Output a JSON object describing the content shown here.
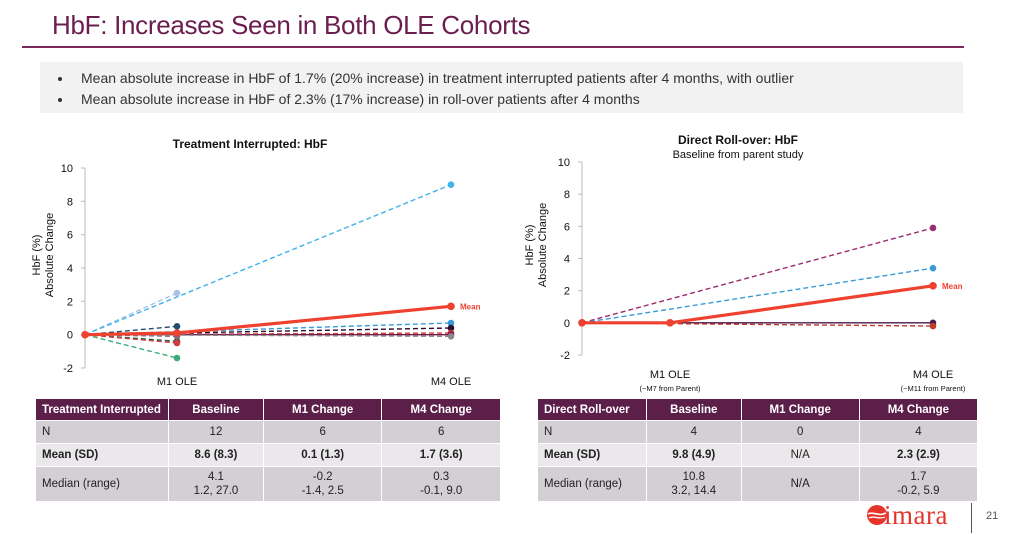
{
  "slide": {
    "title": "HbF: Increases Seen in Both OLE Cohorts",
    "bullets": [
      "Mean absolute increase in HbF of 1.7% (20% increase) in treatment interrupted patients after 4 months, with outlier",
      "Mean absolute increase in HbF of 2.3% (17% increase) in roll-over patients after 4 months"
    ],
    "logo_text": "imara",
    "page_number": "21",
    "colors": {
      "brand": "#6b1d4f",
      "table_header": "#5c1f4a",
      "mean_line": "#ef4130",
      "logo": "#e5352b"
    }
  },
  "chart_data": [
    {
      "type": "line",
      "title": "Treatment Interrupted: HbF",
      "subtitle": "",
      "ylabel": [
        "HbF (%)",
        "Absolute Change"
      ],
      "xlabel": "",
      "categories": [
        "",
        "M1 OLE",
        "M4 OLE"
      ],
      "category_sublabels": [
        "",
        "",
        ""
      ],
      "ylim": [
        -2,
        10
      ],
      "yticks": [
        "-2",
        "0",
        "2",
        "4",
        "6",
        "8",
        "10"
      ],
      "grid": false,
      "series": [
        {
          "color": "#a9c4e8",
          "dashed": true,
          "values": [
            0,
            2.5,
            null
          ]
        },
        {
          "color": "#1f4e6e",
          "dashed": true,
          "values": [
            0,
            0.5,
            null
          ]
        },
        {
          "color": "#1e5a3a",
          "dashed": true,
          "values": [
            0,
            -0.4,
            null
          ]
        },
        {
          "color": "#d23b3b",
          "dashed": true,
          "values": [
            0,
            -0.5,
            null
          ]
        },
        {
          "color": "#3daa78",
          "dashed": true,
          "values": [
            0,
            -1.4,
            null
          ]
        },
        {
          "color": "#7a6a7a",
          "dashed": true,
          "values": [
            0,
            -0.1,
            null
          ]
        },
        {
          "color": "#3fb3ea",
          "dashed": true,
          "values": [
            0,
            null,
            9.0
          ]
        },
        {
          "color": "#3a9ad9",
          "dashed": true,
          "values": [
            0,
            null,
            0.7
          ]
        },
        {
          "color": "#2a1030",
          "dashed": true,
          "values": [
            0,
            null,
            0.4
          ]
        },
        {
          "color": "#d23b3b",
          "dashed": true,
          "values": [
            0,
            null,
            0.1
          ]
        },
        {
          "color": "#7a1a4a",
          "dashed": false,
          "values": [
            0,
            null,
            0.0
          ]
        },
        {
          "color": "#8a8a8a",
          "dashed": true,
          "values": [
            0,
            null,
            -0.1
          ]
        },
        {
          "name": "Mean",
          "color": "#ef4130",
          "dashed": false,
          "mean": true,
          "values": [
            0,
            0.1,
            1.7
          ]
        }
      ]
    },
    {
      "type": "line",
      "title": "Direct Roll-over: HbF",
      "subtitle": "Baseline from parent study",
      "ylabel": [
        "HbF (%)",
        "Absolute Change"
      ],
      "xlabel": "",
      "categories": [
        "",
        "M1 OLE",
        "M4 OLE"
      ],
      "category_sublabels": [
        "",
        "(~M7 from Parent)",
        "(~M11 from Parent)"
      ],
      "ylim": [
        -2,
        10
      ],
      "yticks": [
        "-2",
        "0",
        "2",
        "4",
        "6",
        "8",
        "10"
      ],
      "grid": false,
      "series": [
        {
          "color": "#9b2c6e",
          "dashed": true,
          "values": [
            0,
            null,
            5.9
          ]
        },
        {
          "color": "#3a9ad9",
          "dashed": true,
          "values": [
            0,
            null,
            3.4
          ]
        },
        {
          "color": "#4a1a4a",
          "dashed": false,
          "values": [
            0,
            null,
            0.0
          ]
        },
        {
          "color": "#c0392b",
          "dashed": true,
          "values": [
            0,
            null,
            -0.2
          ]
        },
        {
          "name": "Mean",
          "color": "#ef4130",
          "dashed": false,
          "mean": true,
          "values": [
            0,
            0.0,
            2.3
          ]
        }
      ]
    }
  ],
  "tables": [
    {
      "headers": [
        "Treatment Interrupted",
        "Baseline",
        "M1 Change",
        "M4 Change"
      ],
      "n": [
        "N",
        "12",
        "6",
        "6"
      ],
      "mean": [
        "Mean (SD)",
        "8.6 (8.3)",
        "0.1 (1.3)",
        "1.7 (3.6)"
      ],
      "median": [
        "Median (range)",
        "4.1",
        "-0.2",
        "0.3"
      ],
      "range": [
        "",
        "1.2, 27.0",
        "-1.4, 2.5",
        "-0.1, 9.0"
      ]
    },
    {
      "headers": [
        "Direct Roll-over",
        "Baseline",
        "M1 Change",
        "M4 Change"
      ],
      "n": [
        "N",
        "4",
        "0",
        "4"
      ],
      "mean": [
        "Mean (SD)",
        "9.8 (4.9)",
        "N/A",
        "2.3 (2.9)"
      ],
      "median": [
        "Median (range)",
        "10.8",
        "N/A",
        "1.7"
      ],
      "range": [
        "",
        "3.2, 14.4",
        "",
        "-0.2, 5.9"
      ]
    }
  ]
}
